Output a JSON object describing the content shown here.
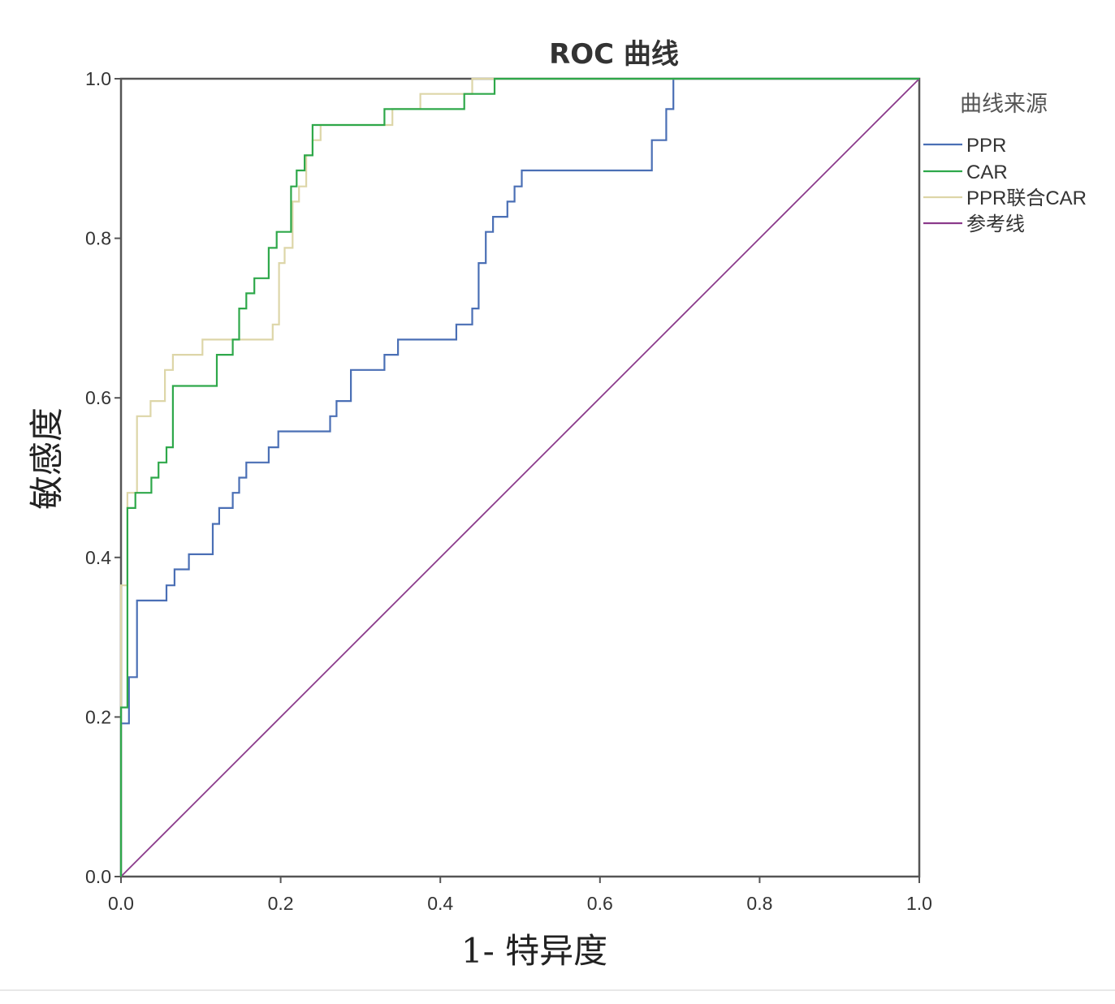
{
  "chart_data": {
    "type": "line",
    "title": "ROC 曲线",
    "xlabel": "1- 特异度",
    "ylabel": "敏感度",
    "xlim": [
      0,
      1
    ],
    "ylim": [
      0,
      1
    ],
    "xticks": [
      "0.0",
      "0.2",
      "0.4",
      "0.6",
      "0.8",
      "1.0"
    ],
    "yticks": [
      "0.0",
      "0.2",
      "0.4",
      "0.6",
      "0.8",
      "1.0"
    ],
    "grid": false,
    "legend": {
      "title": "曲线来源",
      "placement": "right"
    },
    "series": [
      {
        "name": "PPR",
        "color": "#4a6fb5",
        "points": [
          [
            0,
            0
          ],
          [
            0,
            0.192
          ],
          [
            0.01,
            0.192
          ],
          [
            0.01,
            0.25
          ],
          [
            0.02,
            0.25
          ],
          [
            0.02,
            0.346
          ],
          [
            0.057,
            0.346
          ],
          [
            0.057,
            0.365
          ],
          [
            0.067,
            0.365
          ],
          [
            0.067,
            0.385
          ],
          [
            0.085,
            0.385
          ],
          [
            0.085,
            0.404
          ],
          [
            0.115,
            0.404
          ],
          [
            0.115,
            0.442
          ],
          [
            0.123,
            0.442
          ],
          [
            0.123,
            0.462
          ],
          [
            0.14,
            0.462
          ],
          [
            0.14,
            0.481
          ],
          [
            0.148,
            0.481
          ],
          [
            0.148,
            0.5
          ],
          [
            0.157,
            0.5
          ],
          [
            0.157,
            0.519
          ],
          [
            0.185,
            0.519
          ],
          [
            0.185,
            0.538
          ],
          [
            0.197,
            0.538
          ],
          [
            0.197,
            0.558
          ],
          [
            0.262,
            0.558
          ],
          [
            0.262,
            0.577
          ],
          [
            0.27,
            0.577
          ],
          [
            0.27,
            0.596
          ],
          [
            0.288,
            0.596
          ],
          [
            0.288,
            0.635
          ],
          [
            0.33,
            0.635
          ],
          [
            0.33,
            0.654
          ],
          [
            0.347,
            0.654
          ],
          [
            0.347,
            0.673
          ],
          [
            0.42,
            0.673
          ],
          [
            0.42,
            0.692
          ],
          [
            0.44,
            0.692
          ],
          [
            0.44,
            0.712
          ],
          [
            0.448,
            0.712
          ],
          [
            0.448,
            0.769
          ],
          [
            0.457,
            0.769
          ],
          [
            0.457,
            0.808
          ],
          [
            0.466,
            0.808
          ],
          [
            0.466,
            0.827
          ],
          [
            0.484,
            0.827
          ],
          [
            0.484,
            0.846
          ],
          [
            0.493,
            0.846
          ],
          [
            0.493,
            0.865
          ],
          [
            0.502,
            0.865
          ],
          [
            0.502,
            0.885
          ],
          [
            0.665,
            0.885
          ],
          [
            0.665,
            0.923
          ],
          [
            0.683,
            0.923
          ],
          [
            0.683,
            0.962
          ],
          [
            0.692,
            0.962
          ],
          [
            0.692,
            1
          ],
          [
            1,
            1
          ]
        ]
      },
      {
        "name": "CAR",
        "color": "#2ea84a",
        "points": [
          [
            0,
            0
          ],
          [
            0,
            0.212
          ],
          [
            0.008,
            0.212
          ],
          [
            0.008,
            0.462
          ],
          [
            0.018,
            0.462
          ],
          [
            0.018,
            0.481
          ],
          [
            0.038,
            0.481
          ],
          [
            0.038,
            0.5
          ],
          [
            0.047,
            0.5
          ],
          [
            0.047,
            0.519
          ],
          [
            0.057,
            0.519
          ],
          [
            0.057,
            0.538
          ],
          [
            0.065,
            0.538
          ],
          [
            0.065,
            0.615
          ],
          [
            0.12,
            0.615
          ],
          [
            0.12,
            0.654
          ],
          [
            0.14,
            0.654
          ],
          [
            0.14,
            0.673
          ],
          [
            0.148,
            0.673
          ],
          [
            0.148,
            0.712
          ],
          [
            0.157,
            0.712
          ],
          [
            0.157,
            0.731
          ],
          [
            0.167,
            0.731
          ],
          [
            0.167,
            0.75
          ],
          [
            0.185,
            0.75
          ],
          [
            0.185,
            0.788
          ],
          [
            0.195,
            0.788
          ],
          [
            0.195,
            0.808
          ],
          [
            0.213,
            0.808
          ],
          [
            0.213,
            0.865
          ],
          [
            0.22,
            0.865
          ],
          [
            0.22,
            0.885
          ],
          [
            0.23,
            0.885
          ],
          [
            0.23,
            0.904
          ],
          [
            0.24,
            0.904
          ],
          [
            0.24,
            0.942
          ],
          [
            0.33,
            0.942
          ],
          [
            0.33,
            0.962
          ],
          [
            0.43,
            0.962
          ],
          [
            0.43,
            0.981
          ],
          [
            0.468,
            0.981
          ],
          [
            0.468,
            1
          ],
          [
            1,
            1
          ]
        ]
      },
      {
        "name": "PPR联合CAR",
        "color": "#ddd6a8",
        "points": [
          [
            0,
            0
          ],
          [
            0,
            0.365
          ],
          [
            0.008,
            0.365
          ],
          [
            0.008,
            0.481
          ],
          [
            0.02,
            0.481
          ],
          [
            0.02,
            0.577
          ],
          [
            0.037,
            0.577
          ],
          [
            0.037,
            0.596
          ],
          [
            0.055,
            0.596
          ],
          [
            0.055,
            0.635
          ],
          [
            0.065,
            0.635
          ],
          [
            0.065,
            0.654
          ],
          [
            0.102,
            0.654
          ],
          [
            0.102,
            0.673
          ],
          [
            0.19,
            0.673
          ],
          [
            0.19,
            0.692
          ],
          [
            0.198,
            0.692
          ],
          [
            0.198,
            0.769
          ],
          [
            0.205,
            0.769
          ],
          [
            0.205,
            0.788
          ],
          [
            0.215,
            0.788
          ],
          [
            0.215,
            0.846
          ],
          [
            0.223,
            0.846
          ],
          [
            0.223,
            0.865
          ],
          [
            0.232,
            0.865
          ],
          [
            0.232,
            0.904
          ],
          [
            0.24,
            0.904
          ],
          [
            0.24,
            0.923
          ],
          [
            0.25,
            0.923
          ],
          [
            0.25,
            0.942
          ],
          [
            0.34,
            0.942
          ],
          [
            0.34,
            0.962
          ],
          [
            0.375,
            0.962
          ],
          [
            0.375,
            0.981
          ],
          [
            0.44,
            0.981
          ],
          [
            0.44,
            1
          ],
          [
            1,
            1
          ]
        ]
      },
      {
        "name": "参考线",
        "color": "#8b3a8b",
        "points": [
          [
            0,
            0
          ],
          [
            1,
            1
          ]
        ]
      }
    ]
  }
}
